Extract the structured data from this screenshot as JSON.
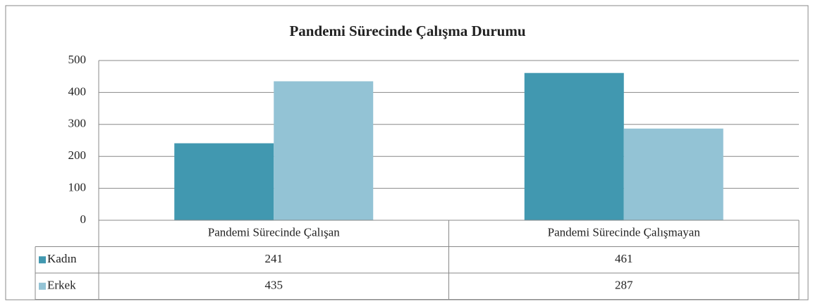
{
  "chart_data": {
    "type": "bar",
    "title": "Pandemi Sürecinde Çalışma Durumu",
    "categories": [
      "Pandemi Sürecinde Çalışan",
      "Pandemi Sürecinde Çalışmayan"
    ],
    "series": [
      {
        "name": "Kadın",
        "color": "#4198b0",
        "values": [
          241,
          461
        ]
      },
      {
        "name": "Erkek",
        "color": "#93c3d5",
        "values": [
          435,
          287
        ]
      }
    ],
    "ylim": [
      0,
      500
    ],
    "yticks": [
      0,
      100,
      200,
      300,
      400,
      500
    ],
    "grid": true,
    "data_table": true
  }
}
